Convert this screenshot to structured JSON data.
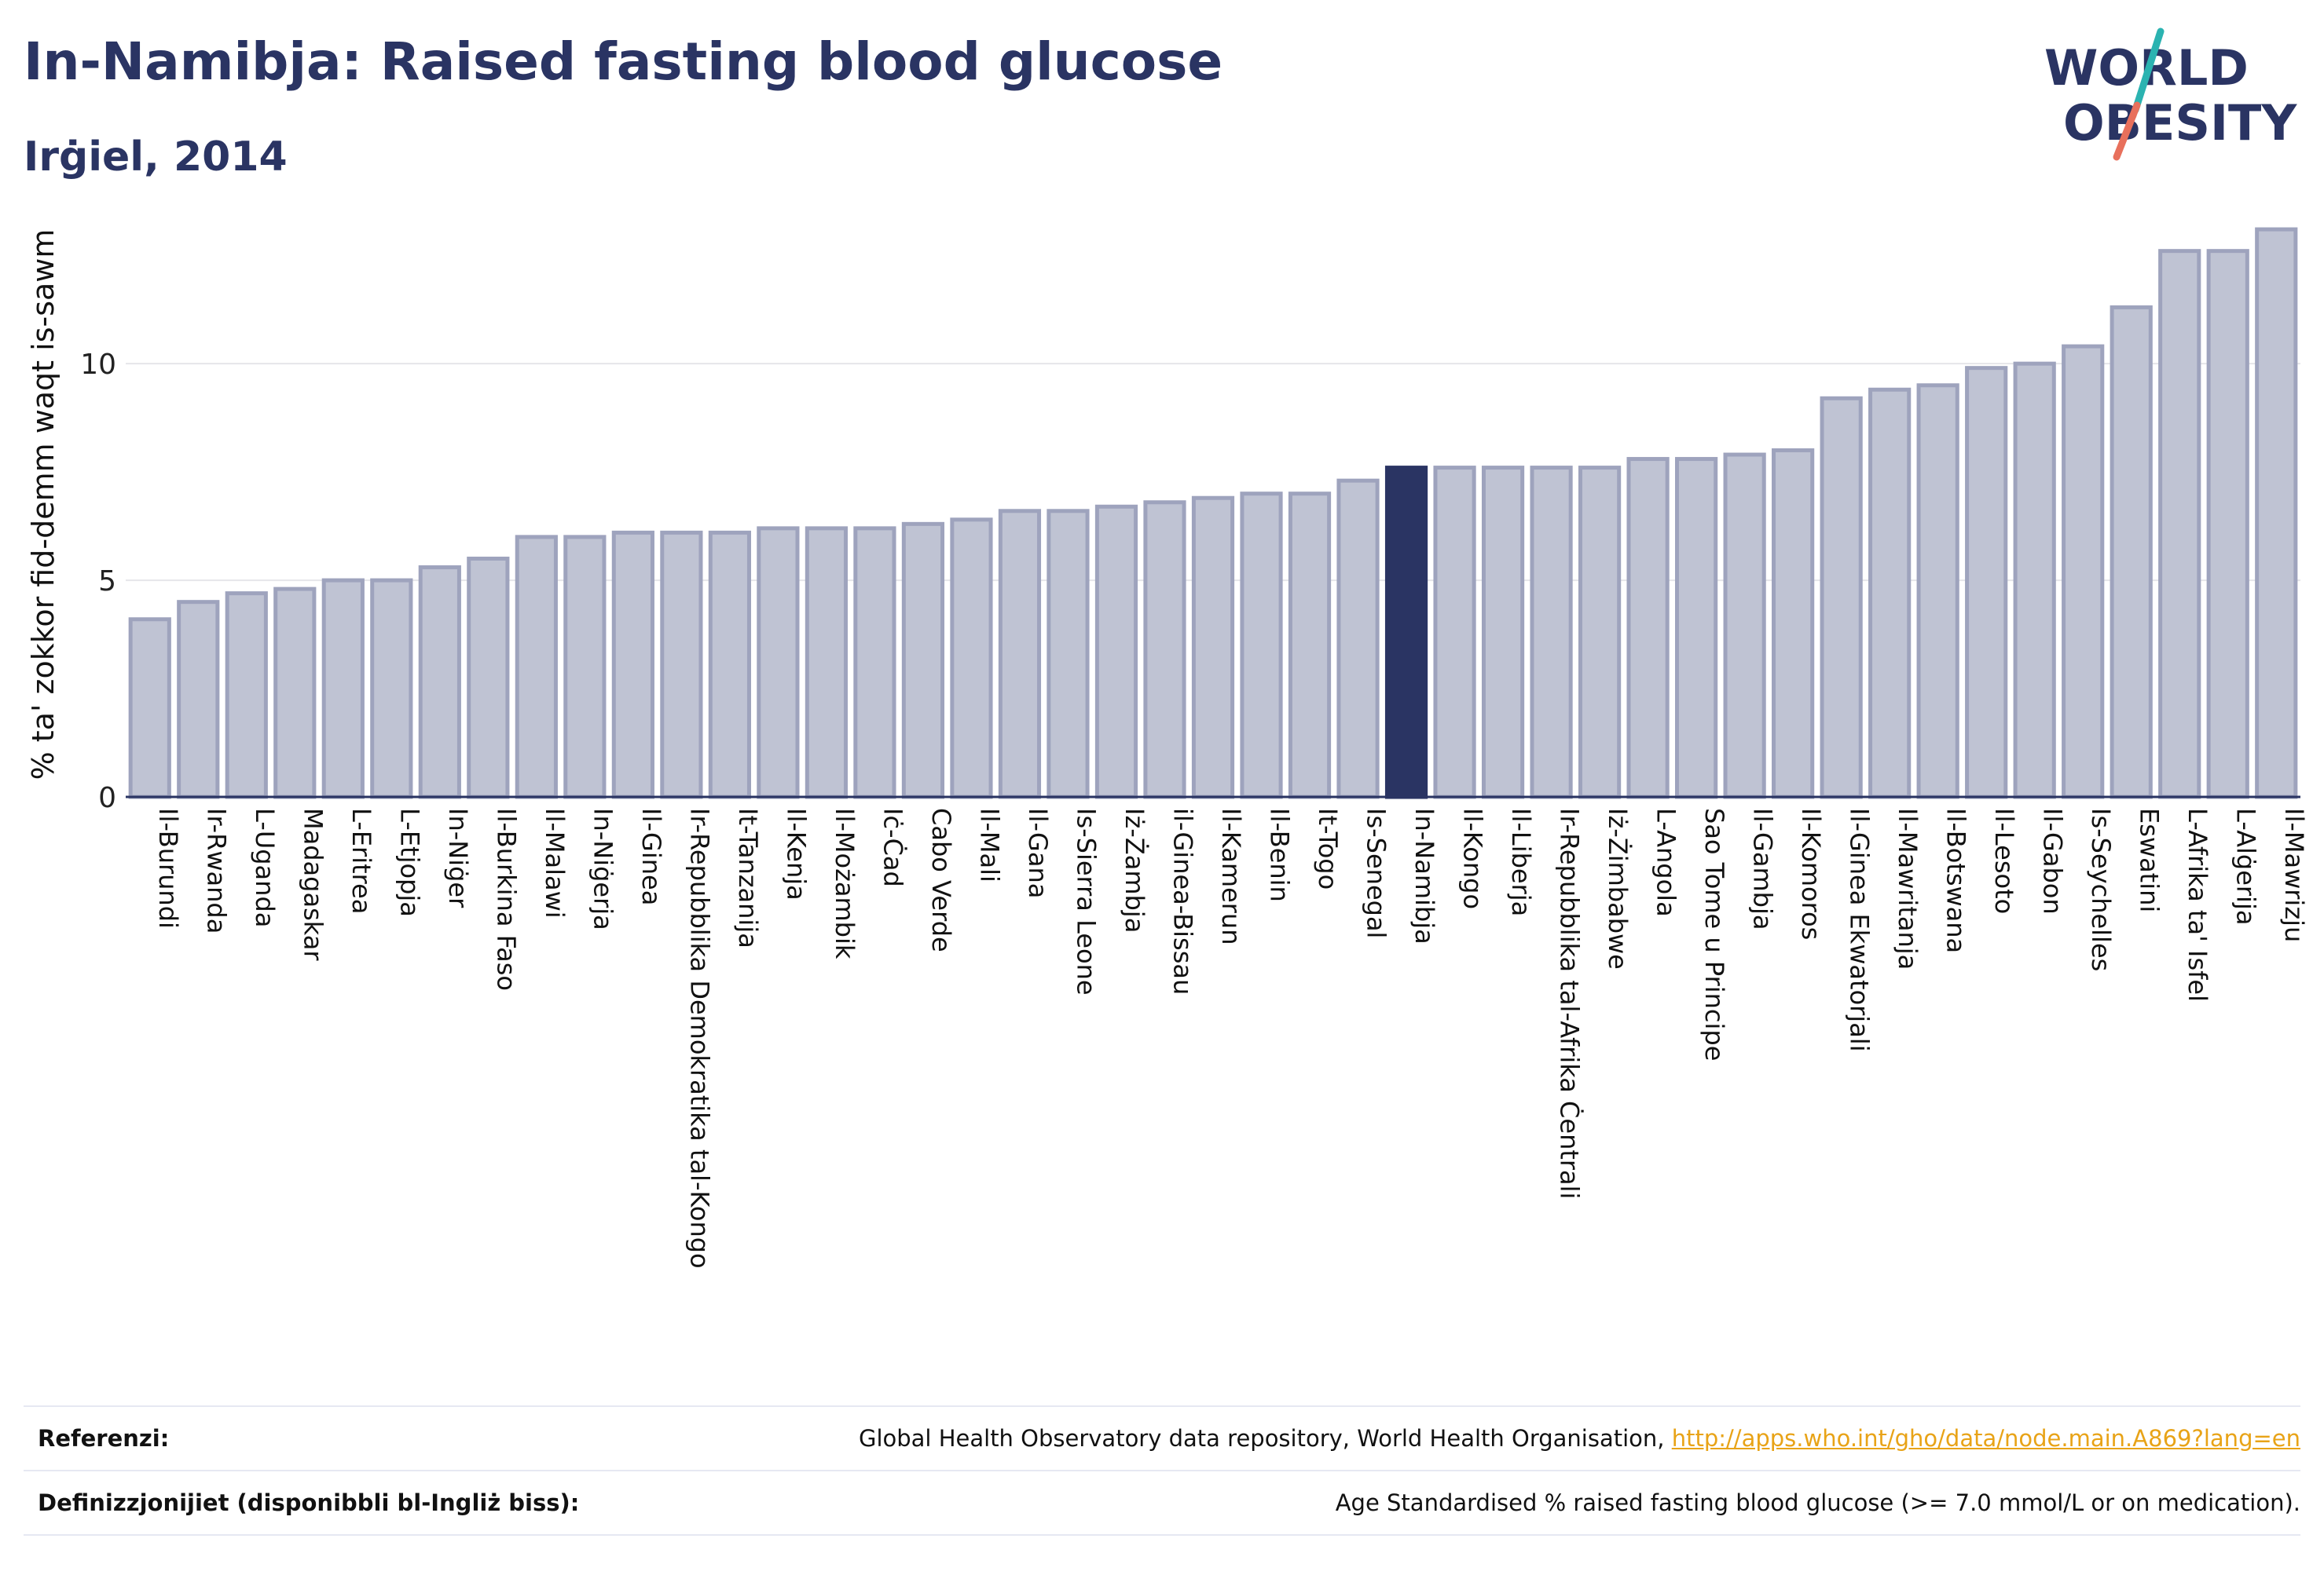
{
  "header": {
    "title": "In-Namibja: Raised fasting blood glucose",
    "subtitle": "Irġiel, 2014"
  },
  "logo": {
    "line1": "WORLD",
    "line2": "OBESITY"
  },
  "colors": {
    "bar_fill": "#bfc3d3",
    "bar_stroke": "#9ea3bd",
    "highlight": "#2a3463",
    "text": "#2a3463",
    "grid": "#e6e6ea",
    "logo_teal": "#2bb3b1",
    "logo_coral": "#e8705c",
    "link": "#e8a317"
  },
  "chart_data": {
    "type": "bar",
    "ylabel": "% ta' zokkor fid-demm waqt is-sawm",
    "ylim": [
      0,
      13.5
    ],
    "yticks": [
      0,
      5,
      10
    ],
    "grid": true,
    "highlight": "In-Namibja",
    "categories": [
      "Il-Burundi",
      "Ir-Rwanda",
      "L-Uganda",
      "Madagaskar",
      "L-Eritrea",
      "L-Etjopja",
      "In-Niġer",
      "Il-Burkina Faso",
      "Il-Malawi",
      "In-Niġerja",
      "Il-Ginea",
      "Ir-Repubblika Demokratika tal-Kongo",
      "It-Tanzanija",
      "Il-Kenja",
      "Il-Możambik",
      "Iċ-Ċad",
      "Cabo Verde",
      "Il-Mali",
      "Il-Gana",
      "Is-Sierra Leone",
      "Iż-Żambja",
      "il-Ginea-Bissau",
      "Il-Kamerun",
      "Il-Benin",
      "It-Togo",
      "Is-Senegal",
      "In-Namibja",
      "Il-Kongo",
      "Il-Liberja",
      "Ir-Repubblika tal-Afrika Ċentrali",
      "Iż-Żimbabwe",
      "L-Angola",
      "Sao Tome u Principe",
      "Il-Gambja",
      "Il-Komoros",
      "Il-Ginea Ekwatorjali",
      "Il-Mawritanja",
      "Il-Botswana",
      "Il-Lesoto",
      "Il-Gabon",
      "Is-Seychelles",
      "Eswatini",
      "L-Afrika ta' Isfel",
      "L-Alġerija",
      "Il-Mawrizju"
    ],
    "values": [
      4.1,
      4.5,
      4.7,
      4.8,
      5.0,
      5.0,
      5.3,
      5.5,
      6.0,
      6.0,
      6.1,
      6.1,
      6.1,
      6.2,
      6.2,
      6.2,
      6.3,
      6.4,
      6.6,
      6.6,
      6.7,
      6.8,
      6.9,
      7.0,
      7.0,
      7.3,
      7.6,
      7.6,
      7.6,
      7.6,
      7.6,
      7.8,
      7.8,
      7.9,
      8.0,
      9.2,
      9.4,
      9.5,
      9.9,
      10.0,
      10.4,
      11.3,
      12.6,
      12.6,
      13.1
    ]
  },
  "footer": {
    "references_label": "Referenzi:",
    "references_text": "Global Health Observatory data repository, World Health Organisation, ",
    "references_link": "http://apps.who.int/gho/data/node.main.A869?lang=en",
    "definitions_label": "Definizzjonijiet (disponibbli bl-Ingliż biss):",
    "definitions_text": "Age Standardised % raised fasting blood glucose (>= 7.0 mmol/L or on medication)."
  }
}
